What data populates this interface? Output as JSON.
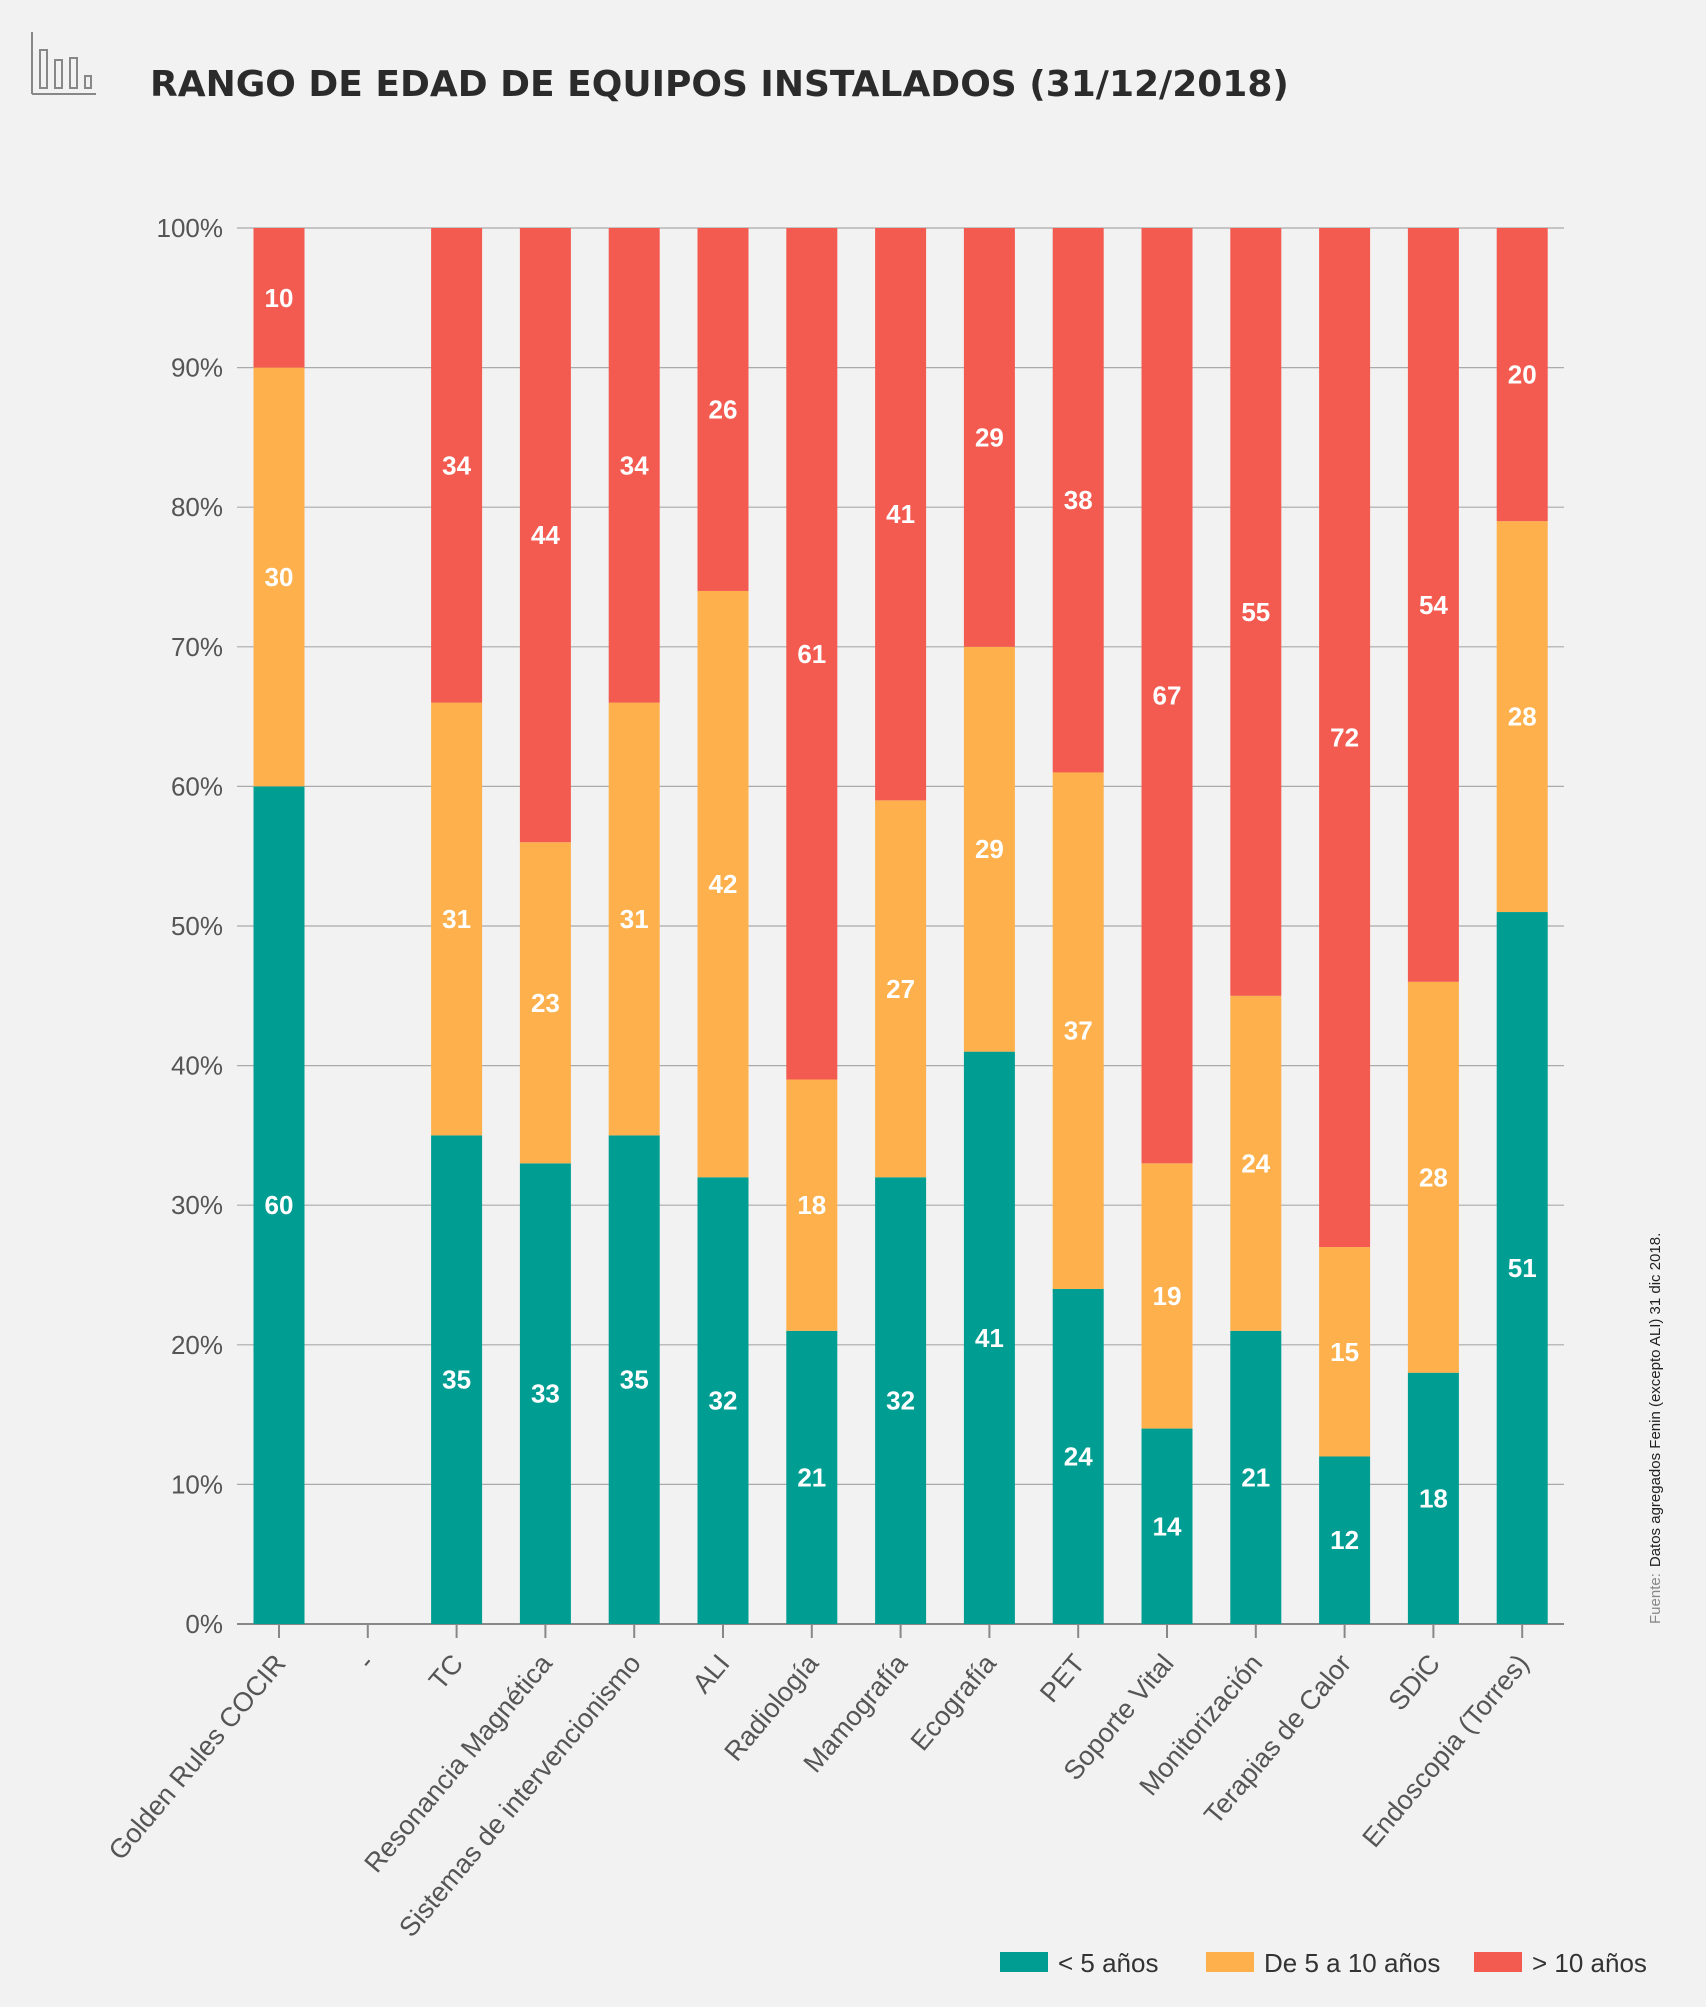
{
  "title": "RANGO DE EDAD DE EQUIPOS INSTALADOS (31/12/2018)",
  "title_icon": "bar-chart-icon",
  "source_prefix": "Fuente:",
  "source_text": "Datos agregados Fenin (excepto ALI) 31 dic 2018.",
  "colors": {
    "lt5": "#009e92",
    "5to10": "#fdb04c",
    "gt10": "#f45b50",
    "background": "#f2f2f2"
  },
  "chart_data": {
    "type": "bar",
    "stacked": true,
    "orientation": "vertical",
    "title": "RANGO DE EDAD DE EQUIPOS INSTALADOS (31/12/2018)",
    "xlabel": "",
    "ylabel": "",
    "ylim": [
      0,
      100
    ],
    "yticks": [
      "0%",
      "10%",
      "20%",
      "30%",
      "40%",
      "50%",
      "60%",
      "70%",
      "80%",
      "90%",
      "100%"
    ],
    "grid": true,
    "legend_position": "bottom-right",
    "categories": [
      "Golden Rules COCIR",
      "-",
      "TC",
      "Resonancia Magnética",
      "Sistemas de intervencionismo",
      "ALI",
      "Radiología",
      "Mamografía",
      "Ecografía",
      "PET",
      "Soporte Vital",
      "Monitorización",
      "Terapias de Calor",
      "SDiC",
      "Endoscopia (Torres)"
    ],
    "series": [
      {
        "name": "< 5 años",
        "color": "#009e92",
        "values": [
          60,
          null,
          35,
          33,
          35,
          32,
          21,
          32,
          41,
          24,
          14,
          21,
          12,
          18,
          51
        ]
      },
      {
        "name": "De 5 a 10 años",
        "color": "#fdb04c",
        "values": [
          30,
          null,
          31,
          23,
          31,
          42,
          18,
          27,
          29,
          37,
          19,
          24,
          15,
          28,
          28
        ]
      },
      {
        "name": "> 10 años",
        "color": "#f45b50",
        "values": [
          10,
          null,
          34,
          44,
          34,
          26,
          61,
          41,
          29,
          38,
          67,
          55,
          72,
          54,
          20
        ]
      }
    ]
  }
}
